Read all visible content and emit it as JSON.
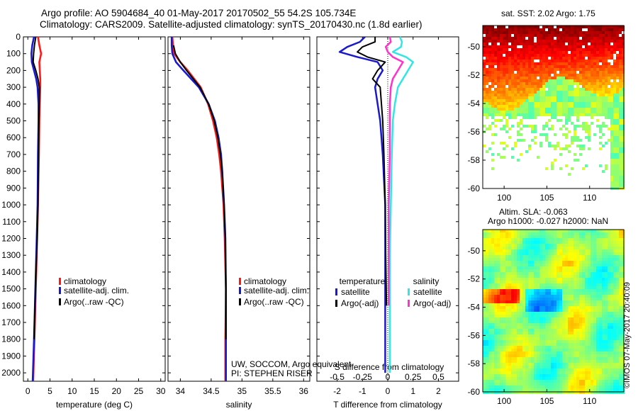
{
  "header": {
    "title_line1": "Argo profile: AO 5904684_40 01-May-2017 20170502_55 54.2S 105.734E",
    "title_line2": "Climatology: CARS2009. Satellite-adjusted climatology: synTS_20170430.nc (1.8d earlier)"
  },
  "side": {
    "sst_label": "sat. SST: 2.02 Argo: 1.75",
    "sla_label": "Altim. SLA: -0.063",
    "sla_argo_label": "Argo h1000: -0.027 h2000: NaN",
    "stamp": "©IMOS 07-May-2017 20:40:09"
  },
  "credits": {
    "line1": "UW, SOCCOM, Argo equivalent",
    "line2": "PI: STEPHEN RISER"
  },
  "colors": {
    "climatology": "#ff1a1a",
    "satellite": "#1a1acc",
    "argo": "#000000",
    "satellite_s": "#33e6e6",
    "argo_s": "#ff33cc"
  },
  "chart_data": [
    {
      "type": "line",
      "id": "temperature",
      "xlabel": "temperature (deg C)",
      "ylabel": "",
      "xlim": [
        -1,
        31
      ],
      "ylim": [
        2050,
        0
      ],
      "xticks": [
        "0",
        "5",
        "10",
        "15",
        "20",
        "25",
        "30"
      ],
      "yticks": [
        "0",
        "100",
        "200",
        "300",
        "400",
        "500",
        "600",
        "700",
        "800",
        "900",
        "1000",
        "1100",
        "1200",
        "1300",
        "1400",
        "1500",
        "1600",
        "1700",
        "1800",
        "1900",
        "2000"
      ],
      "legend": [
        "climatology",
        "satellite-adj. clim.",
        "Argo(..raw -QC)"
      ],
      "legend_position": "lower-center",
      "depth": [
        0,
        50,
        100,
        150,
        200,
        250,
        300,
        400,
        500,
        700,
        1000,
        1200,
        1500,
        1800,
        2050
      ],
      "series": [
        {
          "name": "climatology",
          "values": [
            2.3,
            2.6,
            3.0,
            2.6,
            2.7,
            2.8,
            2.8,
            2.7,
            2.6,
            2.5,
            2.3,
            2.1,
            1.8,
            1.5,
            1.2
          ]
        },
        {
          "name": "satellite-adj. clim.",
          "values": [
            1.4,
            1.0,
            0.8,
            0.9,
            1.4,
            1.9,
            2.2,
            2.4,
            2.4,
            2.3,
            2.2,
            2.0,
            1.7,
            1.4,
            1.1
          ]
        },
        {
          "name": "Argo(..raw -QC)",
          "values": [
            1.8,
            1.5,
            1.3,
            1.2,
            1.8,
            2.3,
            2.6,
            2.6,
            2.5,
            2.4,
            2.3,
            2.1,
            1.7,
            1.4,
            null
          ]
        }
      ]
    },
    {
      "type": "line",
      "id": "salinity",
      "xlabel": "salinity",
      "ylabel": "",
      "xlim": [
        33.8,
        36.1
      ],
      "ylim": [
        2050,
        0
      ],
      "xticks": [
        "34",
        "34.5",
        "35",
        "35.5",
        "36"
      ],
      "legend": [
        "climatology",
        "satellite-adj. clim.",
        "Argo(..raw -QC)"
      ],
      "legend_position": "lower-center",
      "depth": [
        0,
        50,
        100,
        150,
        200,
        300,
        400,
        500,
        600,
        700,
        800,
        1000,
        1200,
        1500,
        1800,
        2050
      ],
      "series": [
        {
          "name": "climatology",
          "values": [
            33.87,
            33.88,
            33.9,
            34.0,
            34.12,
            34.33,
            34.45,
            34.53,
            34.59,
            34.63,
            34.66,
            34.7,
            34.72,
            34.74,
            34.73,
            34.73
          ]
        },
        {
          "name": "satellite-adj. clim.",
          "values": [
            33.86,
            33.86,
            33.87,
            33.93,
            34.05,
            34.3,
            34.46,
            34.56,
            34.62,
            34.66,
            34.68,
            34.71,
            34.73,
            34.74,
            34.74,
            34.74
          ]
        },
        {
          "name": "Argo(..raw -QC)",
          "values": [
            null,
            33.89,
            33.92,
            34.0,
            34.1,
            34.32,
            34.46,
            34.55,
            34.61,
            34.65,
            34.68,
            34.71,
            34.73,
            34.74,
            34.74,
            null
          ]
        }
      ]
    },
    {
      "type": "line",
      "id": "difference",
      "xlabel": "T difference from climatology",
      "xlabel_top": "S difference from climatology",
      "xlim": [
        -2.8,
        2.8
      ],
      "ylim": [
        2050,
        0
      ],
      "xticks": [
        "-2",
        "-1",
        "0",
        "1",
        "2"
      ],
      "xticks_top": [
        "-0.5",
        "-0.25",
        "0",
        "0.25",
        "0.5"
      ],
      "legend_titles": [
        "temperature",
        "salinity"
      ],
      "legend": [
        "satellite",
        "Argo(-adj)",
        "satellite",
        "Argo(-adj)"
      ],
      "depth": [
        0,
        30,
        60,
        90,
        120,
        150,
        200,
        250,
        300,
        400,
        500,
        700,
        1000,
        1300,
        1600,
        2000
      ],
      "series": [
        {
          "name": "satellite",
          "quantity": "temperature",
          "values": [
            -0.9,
            -1.1,
            -1.6,
            -1.9,
            -1.2,
            -0.4,
            -0.2,
            -0.4,
            -0.5,
            -0.4,
            -0.3,
            -0.2,
            -0.1,
            -0.1,
            -0.1,
            -0.1
          ]
        },
        {
          "name": "Argo(-adj)",
          "quantity": "temperature",
          "values": [
            -0.5,
            -0.5,
            -1.0,
            -1.2,
            -0.8,
            -0.1,
            -0.4,
            -0.6,
            -0.3,
            -0.25,
            -0.2,
            -0.15,
            -0.1,
            -0.08,
            -0.05,
            null
          ]
        },
        {
          "name": "satellite",
          "quantity": "salinity",
          "values": [
            0.12,
            0.14,
            0.13,
            0.05,
            0.18,
            0.25,
            0.2,
            0.15,
            0.1,
            0.07,
            0.05,
            0.04,
            0.03,
            0.02,
            0.02,
            0.02
          ]
        },
        {
          "name": "Argo(-adj)",
          "quantity": "salinity",
          "values": [
            0.02,
            0.03,
            -0.02,
            0.0,
            0.05,
            0.15,
            0.1,
            0.05,
            0.03,
            0.02,
            0.02,
            0.02,
            0.01,
            0.01,
            0.01,
            null
          ]
        }
      ]
    },
    {
      "type": "heatmap",
      "id": "sst_map",
      "title": "sat. SST: 2.02 Argo: 1.75",
      "xlim": [
        97.5,
        114
      ],
      "ylim": [
        -60,
        -48.5
      ],
      "xticks": [
        "100",
        "105",
        "110"
      ],
      "yticks": [
        "-50",
        "-52",
        "-54",
        "-56",
        "-58",
        "-60"
      ],
      "colormap": "jet",
      "profile_location": [
        105.734,
        -54.2
      ]
    },
    {
      "type": "heatmap",
      "id": "sla_map",
      "title": "Altim. SLA: -0.063",
      "xlim": [
        97.5,
        114
      ],
      "ylim": [
        -60,
        -48.5
      ],
      "xticks": [
        "100",
        "105",
        "110"
      ],
      "yticks": [
        "-50",
        "-52",
        "-54",
        "-56",
        "-58",
        "-60"
      ],
      "colormap": "jet"
    }
  ]
}
